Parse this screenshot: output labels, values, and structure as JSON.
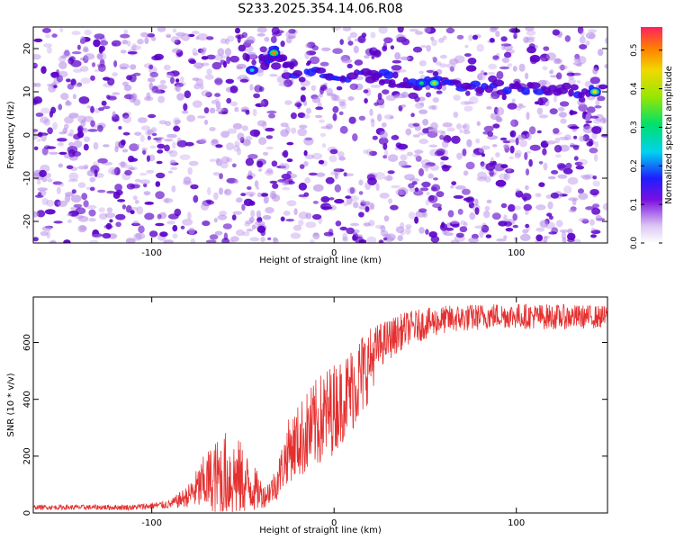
{
  "title": "S233.2025.354.14.06.R08",
  "colors": {
    "trace": "#e53030",
    "speckle_dark": "#5a00c8",
    "speckle_light": "#b68be8"
  },
  "chart_data": [
    {
      "type": "heatmap",
      "xlabel": "Height of straight line (km)",
      "ylabel": "Frequency (Hz)",
      "xlim": [
        -165,
        150
      ],
      "ylim": [
        -25,
        25
      ],
      "xticks": [
        -100,
        0,
        100
      ],
      "yticks": [
        -20,
        -10,
        0,
        10,
        20
      ],
      "colorbar": {
        "label": "Normalized spectral amplitude",
        "range": [
          0,
          0.56
        ],
        "ticks": [
          0.0,
          0.1,
          0.2,
          0.3,
          0.4,
          0.5
        ]
      },
      "ridge": [
        {
          "x": -38,
          "y": 17
        },
        {
          "x": -33,
          "y": 19
        },
        {
          "x": -20,
          "y": 14
        },
        {
          "x": 0,
          "y": 14
        },
        {
          "x": 20,
          "y": 14
        },
        {
          "x": 30,
          "y": 13
        },
        {
          "x": 45,
          "y": 12
        },
        {
          "x": 55,
          "y": 12
        },
        {
          "x": 70,
          "y": 11
        },
        {
          "x": 90,
          "y": 11
        },
        {
          "x": 110,
          "y": 11
        },
        {
          "x": 130,
          "y": 10
        },
        {
          "x": 145,
          "y": 10
        }
      ],
      "hotspots": [
        {
          "x": -33,
          "y": 19,
          "v": 0.5
        },
        {
          "x": 143,
          "y": 10,
          "v": 0.45
        },
        {
          "x": 55,
          "y": 12,
          "v": 0.4
        },
        {
          "x": 48,
          "y": 12,
          "v": 0.3
        },
        {
          "x": -45,
          "y": 15,
          "v": 0.25
        }
      ]
    },
    {
      "type": "line",
      "xlabel": "Height of straight line (km)",
      "ylabel": "SNR (10 * v/v)",
      "xlim": [
        -165,
        150
      ],
      "ylim": [
        0,
        760
      ],
      "xticks": [
        -100,
        0,
        100
      ],
      "yticks": [
        0,
        200,
        400,
        600
      ],
      "envelope": [
        {
          "x": -165,
          "mean": 20,
          "amp": 8
        },
        {
          "x": -110,
          "mean": 20,
          "amp": 10
        },
        {
          "x": -90,
          "mean": 30,
          "amp": 15
        },
        {
          "x": -80,
          "mean": 60,
          "amp": 40
        },
        {
          "x": -70,
          "mean": 110,
          "amp": 110
        },
        {
          "x": -60,
          "mean": 130,
          "amp": 160
        },
        {
          "x": -52,
          "mean": 120,
          "amp": 140
        },
        {
          "x": -45,
          "mean": 90,
          "amp": 90
        },
        {
          "x": -38,
          "mean": 60,
          "amp": 40
        },
        {
          "x": -32,
          "mean": 100,
          "amp": 60
        },
        {
          "x": -25,
          "mean": 220,
          "amp": 110
        },
        {
          "x": -15,
          "mean": 280,
          "amp": 150
        },
        {
          "x": -5,
          "mean": 340,
          "amp": 170
        },
        {
          "x": 5,
          "mean": 400,
          "amp": 150
        },
        {
          "x": 15,
          "mean": 480,
          "amp": 160
        },
        {
          "x": 25,
          "mean": 590,
          "amp": 80
        },
        {
          "x": 40,
          "mean": 650,
          "amp": 60
        },
        {
          "x": 60,
          "mean": 680,
          "amp": 50
        },
        {
          "x": 90,
          "mean": 695,
          "amp": 45
        },
        {
          "x": 120,
          "mean": 690,
          "amp": 45
        },
        {
          "x": 150,
          "mean": 690,
          "amp": 40
        }
      ]
    }
  ]
}
